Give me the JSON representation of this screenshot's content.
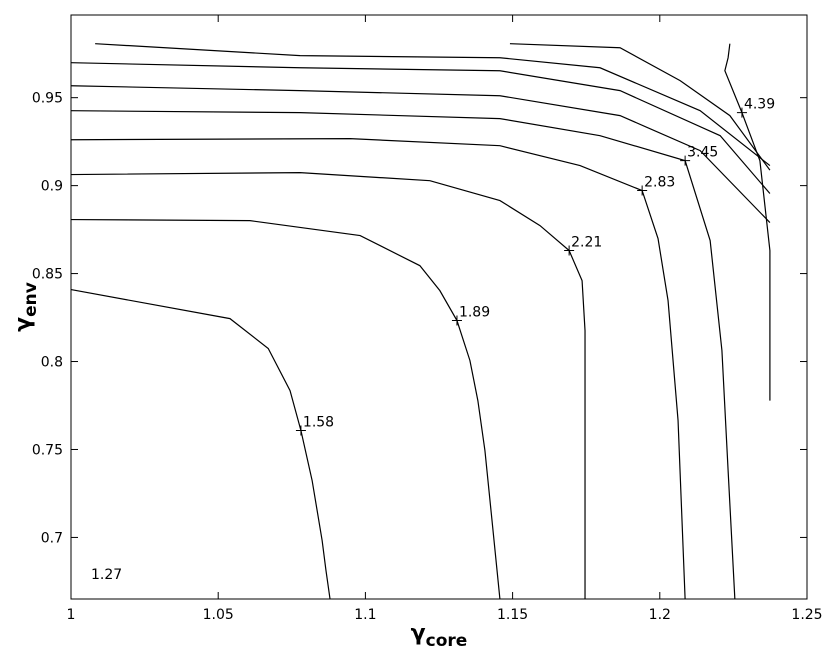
{
  "chart_data": {
    "type": "contour",
    "xlabel": {
      "symbol": "γ",
      "subscript": "core"
    },
    "ylabel": {
      "symbol": "γ",
      "subscript": "env"
    },
    "xlim": [
      1,
      1.25
    ],
    "ylim": [
      0.665,
      0.997
    ],
    "xticks": [
      1,
      1.05,
      1.1,
      1.15,
      1.2,
      1.25
    ],
    "yticks": [
      0.7,
      0.75,
      0.8,
      0.85,
      0.9,
      0.95
    ],
    "color": "#000000",
    "annotations": [
      {
        "text": "1.27"
      }
    ],
    "contours": [
      {
        "level": 1.58,
        "x": [
          1.0,
          1.054,
          1.067,
          1.0744,
          1.0781,
          1.0819,
          1.0853,
          1.0866,
          1.088
        ],
        "y": [
          0.8409,
          0.8244,
          0.8074,
          0.7835,
          0.7608,
          0.7324,
          0.6983,
          0.6813,
          0.6648
        ]
      },
      {
        "level": 1.89,
        "x": [
          1.0,
          1.0608,
          1.0982,
          1.1185,
          1.1253,
          1.1311,
          1.1355,
          1.1382,
          1.1406,
          1.143,
          1.1457
        ],
        "y": [
          0.8807,
          0.8801,
          0.8716,
          0.8545,
          0.8403,
          0.8233,
          0.8006,
          0.7778,
          0.7494,
          0.7097,
          0.6648
        ]
      },
      {
        "level": 2.21,
        "x": [
          1.0,
          1.0778,
          1.1219,
          1.1457,
          1.1593,
          1.1692,
          1.1736,
          1.1746,
          1.1746,
          1.1746,
          1.1746
        ],
        "y": [
          0.9063,
          0.9074,
          0.9028,
          0.8915,
          0.8773,
          0.8631,
          0.846,
          0.8176,
          0.7665,
          0.7153,
          0.6648
        ]
      },
      {
        "level": 2.83,
        "x": [
          1.0,
          1.0948,
          1.1457,
          1.1729,
          1.194,
          1.1994,
          1.2028,
          1.2062,
          1.2086
        ],
        "y": [
          0.9261,
          0.9267,
          0.9227,
          0.9114,
          0.8972,
          0.8699,
          0.8347,
          0.7665,
          0.6648
        ]
      },
      {
        "level": 3.45,
        "x": [
          1.0,
          1.0778,
          1.1457,
          1.1797,
          1.2086,
          1.2171,
          1.2211,
          1.2232,
          1.2255
        ],
        "y": [
          0.9426,
          0.9415,
          0.9381,
          0.9284,
          0.9142,
          0.8688,
          0.8063,
          0.7381,
          0.6648
        ]
      },
      {
        "x": [
          1.0,
          1.0778,
          1.1457,
          1.1865,
          1.2137,
          1.2374
        ],
        "y": [
          0.9568,
          0.954,
          0.9511,
          0.9398,
          0.9199,
          0.879
        ]
      },
      {
        "x": [
          1.0,
          1.0778,
          1.1457,
          1.1865,
          1.2205,
          1.2374
        ],
        "y": [
          0.9699,
          0.967,
          0.9653,
          0.954,
          0.9284,
          0.8955
        ]
      },
      {
        "x": [
          1.0082,
          1.0778,
          1.1457,
          1.1797,
          1.2137,
          1.2374
        ],
        "y": [
          0.9807,
          0.9739,
          0.9727,
          0.967,
          0.9426,
          0.9114
        ]
      },
      {
        "x": [
          1.1491,
          1.1865,
          1.2069,
          1.2238,
          1.2374
        ],
        "y": [
          0.9807,
          0.9784,
          0.9597,
          0.9398,
          0.9088
        ]
      },
      {
        "level": 4.39,
        "x": [
          1.2238,
          1.2232,
          1.2221,
          1.2279,
          1.234,
          1.2374,
          1.2374
        ],
        "y": [
          0.9807,
          0.9727,
          0.9653,
          0.9415,
          0.9142,
          0.8631,
          0.7778
        ]
      }
    ]
  }
}
